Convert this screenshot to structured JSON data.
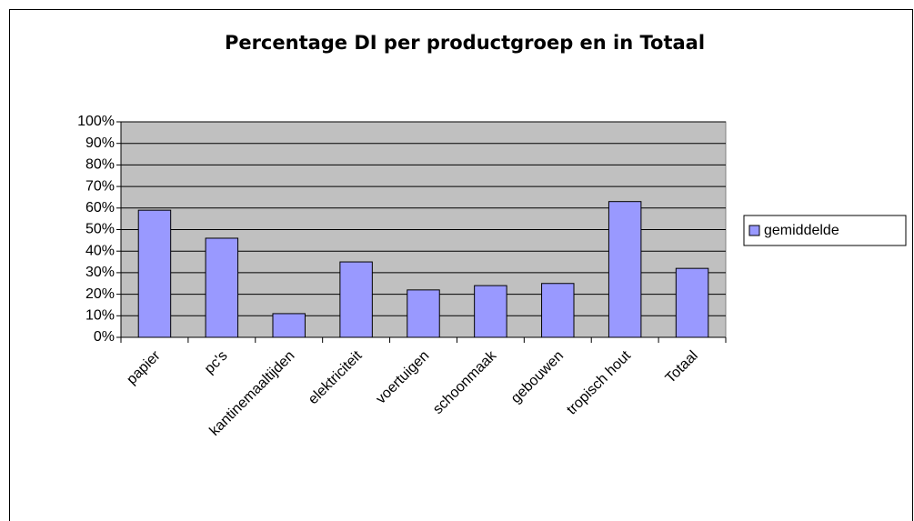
{
  "chart_data": {
    "type": "bar",
    "title": "Percentage DI per productgroep en in Totaal",
    "categories": [
      "papier",
      "pc's",
      "kantinemaaltijden",
      "elektriciteit",
      "voertuigen",
      "schoonmaak",
      "gebouwen",
      "tropisch hout",
      "Totaal"
    ],
    "series": [
      {
        "name": "gemiddelde",
        "color": "#9999ff",
        "values": [
          59,
          46,
          11,
          35,
          22,
          24,
          25,
          63,
          32
        ]
      }
    ],
    "ylim": [
      0,
      100
    ],
    "yticks": [
      {
        "value": 0,
        "label": "0%"
      },
      {
        "value": 10,
        "label": "10%"
      },
      {
        "value": 20,
        "label": "20%"
      },
      {
        "value": 30,
        "label": "30%"
      },
      {
        "value": 40,
        "label": "40%"
      },
      {
        "value": 50,
        "label": "50%"
      },
      {
        "value": 60,
        "label": "60%"
      },
      {
        "value": 70,
        "label": "70%"
      },
      {
        "value": 80,
        "label": "80%"
      },
      {
        "value": 90,
        "label": "90%"
      },
      {
        "value": 100,
        "label": "100%"
      }
    ],
    "grid": true,
    "legend": "right"
  }
}
